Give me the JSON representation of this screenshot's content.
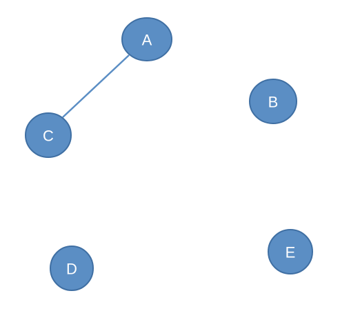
{
  "diagram": {
    "type": "graph",
    "colors": {
      "node_fill": "#5b8ec4",
      "node_stroke": "#3f6fa3",
      "edge": "#5b8ec4",
      "background": "#ffffff"
    },
    "nodes": [
      {
        "id": "A",
        "label": "A"
      },
      {
        "id": "B",
        "label": "B"
      },
      {
        "id": "C",
        "label": "C"
      },
      {
        "id": "D",
        "label": "D"
      },
      {
        "id": "E",
        "label": "E"
      }
    ],
    "edges": [
      {
        "from": "A",
        "to": "C"
      }
    ]
  }
}
